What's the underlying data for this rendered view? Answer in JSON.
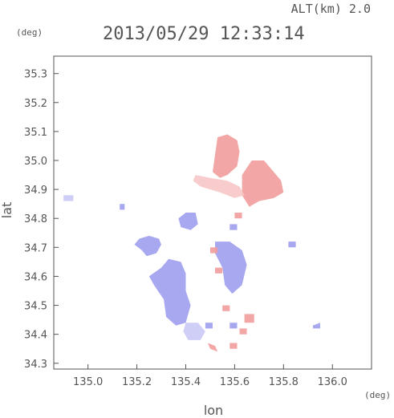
{
  "header": {
    "alt_label": "ALT(km) 2.0",
    "timestamp": "2013/05/29 12:33:14"
  },
  "colors": {
    "positive": "#f29c9c",
    "positive_light": "#f7c6c6",
    "negative": "#9f9ff0",
    "negative_light": "#c9c9f6",
    "axis": "#555555"
  },
  "chart_data": {
    "type": "heatmap",
    "xlabel": "lon",
    "ylabel": "lat",
    "x_unit": "(deg)",
    "y_unit": "(deg)",
    "xlim": [
      134.86,
      136.16
    ],
    "ylim": [
      34.28,
      35.36
    ],
    "xticks": [
      135.0,
      135.2,
      135.4,
      135.6,
      135.8,
      136.0
    ],
    "xtick_labels": [
      "135.0",
      "135.2",
      "135.4",
      "135.6",
      "135.8",
      "136.0"
    ],
    "yticks": [
      34.3,
      34.4,
      34.5,
      34.6,
      34.7,
      34.8,
      34.9,
      35.0,
      35.1,
      35.2,
      35.3
    ],
    "ytick_labels": [
      "34.3",
      "34.4",
      "34.5",
      "34.6",
      "34.7",
      "34.8",
      "34.9",
      "35.0",
      "35.1",
      "35.2",
      "35.3"
    ],
    "grid": false,
    "regions": [
      {
        "sign": "positive",
        "points": [
          [
            135.53,
            35.08
          ],
          [
            135.57,
            35.09
          ],
          [
            135.61,
            35.07
          ],
          [
            135.62,
            35.03
          ],
          [
            135.61,
            34.98
          ],
          [
            135.57,
            34.95
          ],
          [
            135.54,
            34.94
          ],
          [
            135.51,
            34.96
          ],
          [
            135.52,
            35.02
          ]
        ]
      },
      {
        "sign": "positive",
        "points": [
          [
            135.67,
            35.0
          ],
          [
            135.72,
            35.0
          ],
          [
            135.76,
            34.96
          ],
          [
            135.79,
            34.93
          ],
          [
            135.8,
            34.89
          ],
          [
            135.76,
            34.87
          ],
          [
            135.7,
            34.86
          ],
          [
            135.66,
            34.84
          ],
          [
            135.63,
            34.88
          ],
          [
            135.63,
            34.95
          ]
        ]
      },
      {
        "sign": "positive_light",
        "points": [
          [
            135.44,
            34.95
          ],
          [
            135.5,
            34.94
          ],
          [
            135.57,
            34.93
          ],
          [
            135.62,
            34.91
          ],
          [
            135.64,
            34.88
          ],
          [
            135.6,
            34.87
          ],
          [
            135.54,
            34.89
          ],
          [
            135.46,
            34.91
          ],
          [
            135.43,
            34.93
          ]
        ]
      },
      {
        "sign": "negative",
        "points": [
          [
            135.25,
            34.74
          ],
          [
            135.29,
            34.73
          ],
          [
            135.3,
            34.71
          ],
          [
            135.28,
            34.68
          ],
          [
            135.24,
            34.67
          ],
          [
            135.22,
            34.69
          ],
          [
            135.19,
            34.71
          ],
          [
            135.21,
            34.73
          ]
        ]
      },
      {
        "sign": "negative",
        "points": [
          [
            135.33,
            34.66
          ],
          [
            135.38,
            34.65
          ],
          [
            135.4,
            34.61
          ],
          [
            135.4,
            34.55
          ],
          [
            135.42,
            34.5
          ],
          [
            135.4,
            34.44
          ],
          [
            135.36,
            34.43
          ],
          [
            135.32,
            34.46
          ],
          [
            135.31,
            34.52
          ],
          [
            135.27,
            34.57
          ],
          [
            135.25,
            34.6
          ],
          [
            135.3,
            34.63
          ]
        ]
      },
      {
        "sign": "negative",
        "points": [
          [
            135.52,
            34.72
          ],
          [
            135.58,
            34.72
          ],
          [
            135.63,
            34.69
          ],
          [
            135.65,
            34.64
          ],
          [
            135.63,
            34.57
          ],
          [
            135.59,
            34.54
          ],
          [
            135.56,
            34.57
          ],
          [
            135.55,
            34.63
          ],
          [
            135.52,
            34.68
          ]
        ]
      },
      {
        "sign": "negative",
        "points": [
          [
            135.4,
            34.82
          ],
          [
            135.44,
            34.82
          ],
          [
            135.45,
            34.78
          ],
          [
            135.42,
            34.76
          ],
          [
            135.38,
            34.77
          ],
          [
            135.37,
            34.8
          ]
        ]
      },
      {
        "sign": "negative_light",
        "points": [
          [
            135.4,
            34.44
          ],
          [
            135.45,
            34.44
          ],
          [
            135.48,
            34.41
          ],
          [
            135.46,
            34.38
          ],
          [
            135.41,
            34.38
          ],
          [
            135.39,
            34.41
          ]
        ]
      },
      {
        "sign": "negative_light",
        "points": [
          [
            134.9,
            34.88
          ],
          [
            134.94,
            34.88
          ],
          [
            134.94,
            34.86
          ],
          [
            134.9,
            34.86
          ]
        ]
      }
    ],
    "speckles": [
      {
        "sign": "positive",
        "points": [
          [
            135.49,
            34.37
          ],
          [
            135.52,
            34.36
          ],
          [
            135.53,
            34.34
          ],
          [
            135.5,
            34.35
          ]
        ]
      },
      {
        "sign": "positive",
        "points": [
          [
            135.58,
            34.37
          ],
          [
            135.61,
            34.37
          ],
          [
            135.61,
            34.35
          ],
          [
            135.58,
            34.35
          ]
        ]
      },
      {
        "sign": "positive",
        "points": [
          [
            135.5,
            34.7
          ],
          [
            135.53,
            34.7
          ],
          [
            135.53,
            34.68
          ],
          [
            135.5,
            34.68
          ]
        ]
      },
      {
        "sign": "positive",
        "points": [
          [
            135.55,
            34.5
          ],
          [
            135.58,
            34.5
          ],
          [
            135.58,
            34.48
          ],
          [
            135.55,
            34.48
          ]
        ]
      },
      {
        "sign": "positive",
        "points": [
          [
            135.64,
            34.47
          ],
          [
            135.68,
            34.47
          ],
          [
            135.68,
            34.44
          ],
          [
            135.64,
            34.44
          ]
        ]
      },
      {
        "sign": "positive",
        "points": [
          [
            135.52,
            34.63
          ],
          [
            135.55,
            34.63
          ],
          [
            135.55,
            34.61
          ],
          [
            135.52,
            34.61
          ]
        ]
      },
      {
        "sign": "positive",
        "points": [
          [
            135.6,
            34.82
          ],
          [
            135.63,
            34.82
          ],
          [
            135.63,
            34.8
          ],
          [
            135.6,
            34.8
          ]
        ]
      },
      {
        "sign": "positive",
        "points": [
          [
            135.62,
            34.42
          ],
          [
            135.65,
            34.42
          ],
          [
            135.65,
            34.4
          ],
          [
            135.62,
            34.4
          ]
        ]
      },
      {
        "sign": "negative",
        "points": [
          [
            135.48,
            34.44
          ],
          [
            135.51,
            34.44
          ],
          [
            135.51,
            34.42
          ],
          [
            135.48,
            34.42
          ]
        ]
      },
      {
        "sign": "negative",
        "points": [
          [
            135.58,
            34.44
          ],
          [
            135.61,
            34.44
          ],
          [
            135.61,
            34.42
          ],
          [
            135.58,
            34.42
          ]
        ]
      },
      {
        "sign": "negative",
        "points": [
          [
            135.92,
            34.43
          ],
          [
            135.95,
            34.44
          ],
          [
            135.95,
            34.42
          ],
          [
            135.92,
            34.42
          ]
        ]
      },
      {
        "sign": "negative",
        "points": [
          [
            135.82,
            34.72
          ],
          [
            135.85,
            34.72
          ],
          [
            135.85,
            34.7
          ],
          [
            135.82,
            34.7
          ]
        ]
      },
      {
        "sign": "negative",
        "points": [
          [
            135.13,
            34.85
          ],
          [
            135.15,
            34.85
          ],
          [
            135.15,
            34.83
          ],
          [
            135.13,
            34.83
          ]
        ]
      },
      {
        "sign": "negative",
        "points": [
          [
            135.58,
            34.78
          ],
          [
            135.61,
            34.78
          ],
          [
            135.61,
            34.76
          ],
          [
            135.58,
            34.76
          ]
        ]
      }
    ]
  }
}
